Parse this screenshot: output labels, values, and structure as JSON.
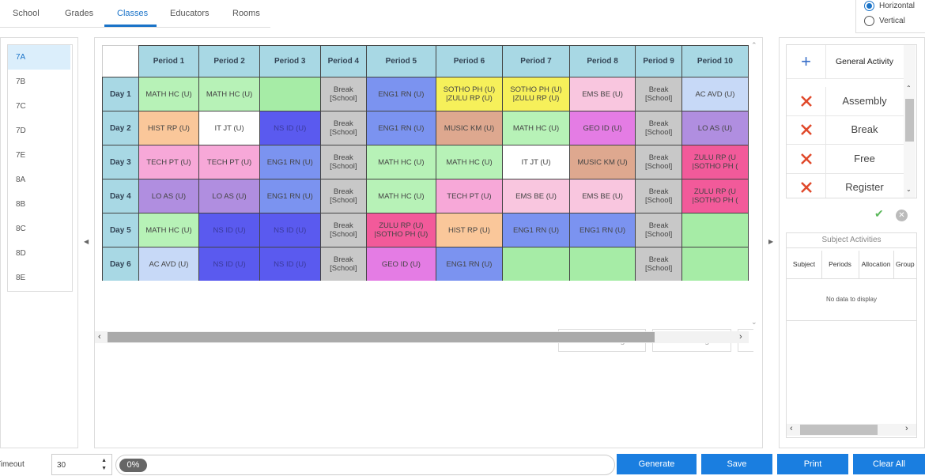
{
  "tabs": [
    "School",
    "Grades",
    "Classes",
    "Educators",
    "Rooms"
  ],
  "active_tab": "Classes",
  "orientation": {
    "horizontal": "Horizontal",
    "vertical": "Vertical",
    "selected": "Horizontal"
  },
  "classes": [
    "7A",
    "7B",
    "7C",
    "7D",
    "7E",
    "8A",
    "8B",
    "8C",
    "8D",
    "8E"
  ],
  "selected_class": "7A",
  "periods": [
    "Period 1",
    "Period 2",
    "Period 3",
    "Period 4",
    "Period 5",
    "Period 6",
    "Period 7",
    "Period 8",
    "Period 9",
    "Period 10"
  ],
  "days": [
    {
      "label": "Day 1",
      "cells": [
        {
          "t": "MATH HC (U)",
          "c": "#b7f2b7"
        },
        {
          "t": "MATH HC (U)",
          "c": "#b7f2b7"
        },
        {
          "t": "",
          "c": "#a6eca6"
        },
        {
          "t": "Break\n[School]",
          "c": "#c8c8c8"
        },
        {
          "t": "ENG1 RN (U)",
          "c": "#7b93f0"
        },
        {
          "t": "SOTHO PH (U)\n|ZULU RP (U)",
          "c": "#f6f05a"
        },
        {
          "t": "SOTHO PH (U)\n|ZULU RP (U)",
          "c": "#f6f05a"
        },
        {
          "t": "EMS BE (U)",
          "c": "#f9c6df"
        },
        {
          "t": "Break\n[School]",
          "c": "#c8c8c8"
        },
        {
          "t": "AC AVD (U)",
          "c": "#c7d9f7"
        }
      ]
    },
    {
      "label": "Day 2",
      "cells": [
        {
          "t": "HIST RP (U)",
          "c": "#fac79a"
        },
        {
          "t": "IT JT (U)",
          "c": "#ffffff"
        },
        {
          "t": "NS ID (U)",
          "c": "#5a5aef"
        },
        {
          "t": "Break\n[School]",
          "c": "#c8c8c8"
        },
        {
          "t": "ENG1 RN (U)",
          "c": "#7b93f0"
        },
        {
          "t": "MUSIC KM (U)",
          "c": "#dea88f"
        },
        {
          "t": "MATH HC (U)",
          "c": "#b7f2b7"
        },
        {
          "t": "GEO ID (U)",
          "c": "#e47ce4"
        },
        {
          "t": "Break\n[School]",
          "c": "#c8c8c8"
        },
        {
          "t": "LO AS (U)",
          "c": "#b08ee0"
        }
      ]
    },
    {
      "label": "Day 3",
      "cells": [
        {
          "t": "TECH PT (U)",
          "c": "#f7a8d8"
        },
        {
          "t": "TECH PT (U)",
          "c": "#f7a8d8"
        },
        {
          "t": "ENG1 RN (U)",
          "c": "#7b93f0"
        },
        {
          "t": "Break\n[School]",
          "c": "#c8c8c8"
        },
        {
          "t": "MATH HC (U)",
          "c": "#b7f2b7"
        },
        {
          "t": "MATH HC (U)",
          "c": "#b7f2b7"
        },
        {
          "t": "IT JT (U)",
          "c": "#ffffff"
        },
        {
          "t": "MUSIC KM (U)",
          "c": "#dea88f"
        },
        {
          "t": "Break\n[School]",
          "c": "#c8c8c8"
        },
        {
          "t": "ZULU RP (U\n|SOTHO PH (",
          "c": "#f25a9a"
        }
      ]
    },
    {
      "label": "Day 4",
      "cells": [
        {
          "t": "LO AS (U)",
          "c": "#b08ee0"
        },
        {
          "t": "LO AS (U)",
          "c": "#b08ee0"
        },
        {
          "t": "ENG1 RN (U)",
          "c": "#7b93f0"
        },
        {
          "t": "Break\n[School]",
          "c": "#c8c8c8"
        },
        {
          "t": "MATH HC (U)",
          "c": "#b7f2b7"
        },
        {
          "t": "TECH PT (U)",
          "c": "#f7a8d8"
        },
        {
          "t": "EMS BE (U)",
          "c": "#f9c6df"
        },
        {
          "t": "EMS BE (U)",
          "c": "#f9c6df"
        },
        {
          "t": "Break\n[School]",
          "c": "#c8c8c8"
        },
        {
          "t": "ZULU RP (U\n|SOTHO PH (",
          "c": "#f25a9a"
        }
      ]
    },
    {
      "label": "Day 5",
      "cells": [
        {
          "t": "MATH HC (U)",
          "c": "#b7f2b7"
        },
        {
          "t": "NS ID (U)",
          "c": "#5a5aef"
        },
        {
          "t": "NS ID (U)",
          "c": "#5a5aef"
        },
        {
          "t": "Break\n[School]",
          "c": "#c8c8c8"
        },
        {
          "t": "ZULU RP (U)\n|SOTHO PH (U)",
          "c": "#f25a9a"
        },
        {
          "t": "HIST RP (U)",
          "c": "#fac79a"
        },
        {
          "t": "ENG1 RN (U)",
          "c": "#7b93f0"
        },
        {
          "t": "ENG1 RN (U)",
          "c": "#7b93f0"
        },
        {
          "t": "Break\n[School]",
          "c": "#c8c8c8"
        },
        {
          "t": "",
          "c": "#a6eca6"
        }
      ]
    },
    {
      "label": "Day 6",
      "cells": [
        {
          "t": "AC AVD (U)",
          "c": "#c7d9f7"
        },
        {
          "t": "NS ID (U)",
          "c": "#5a5aef"
        },
        {
          "t": "NS ID (U)",
          "c": "#5a5aef"
        },
        {
          "t": "Break\n[School]",
          "c": "#c8c8c8"
        },
        {
          "t": "GEO ID (U)",
          "c": "#e47ce4"
        },
        {
          "t": "ENG1 RN (U)",
          "c": "#7b93f0"
        },
        {
          "t": "",
          "c": "#a6eca6"
        },
        {
          "t": "",
          "c": "#a6eca6"
        },
        {
          "t": "Break\n[School]",
          "c": "#c8c8c8"
        },
        {
          "t": "",
          "c": "#a6eca6"
        }
      ]
    }
  ],
  "grid_buttons": {
    "preview": "Preview changes",
    "save": "Save changes"
  },
  "activities": {
    "header": "General Activity",
    "items": [
      "Assembly",
      "Break",
      "Free",
      "Register"
    ]
  },
  "subject_activities": {
    "title": "Subject Activities",
    "columns": [
      "Subject",
      "Periods",
      "Allocation",
      "Group"
    ],
    "empty": "No data to display"
  },
  "bottom": {
    "timeout_label": "Timeout",
    "timeout_value": "30",
    "progress": "0%",
    "buttons": [
      "Generate",
      "Save",
      "Print",
      "Clear All"
    ]
  },
  "colors": {
    "accent": "#1a7ee0",
    "header_cell": "#a8d8e4",
    "remove_icon": "#e0492b",
    "add_icon": "#3a6fc8"
  }
}
